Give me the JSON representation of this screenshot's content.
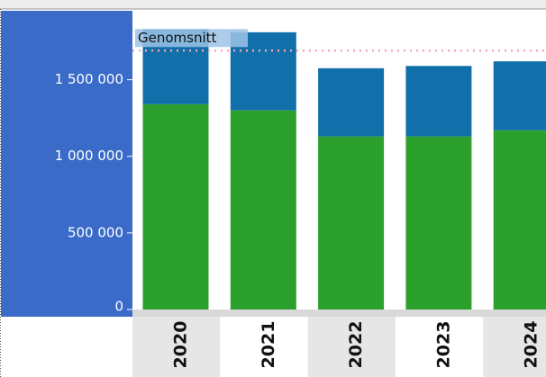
{
  "chart_data": {
    "type": "stacked_bar",
    "categories": [
      "2020",
      "2021",
      "2022",
      "2023",
      "2024"
    ],
    "series": [
      {
        "color": "#2ca02c",
        "values": [
          1340000,
          1300000,
          1130000,
          1130000,
          1170000
        ]
      },
      {
        "color": "#1170aa",
        "values": [
          490000,
          510000,
          445000,
          460000,
          450000
        ]
      }
    ],
    "ylim": [
      0,
      1950000
    ],
    "yticks": [
      0,
      {
        "value": 500000,
        "label": "500 000"
      },
      {
        "value": 1000000,
        "label": "1 000 000"
      },
      {
        "value": 1500000,
        "label": "1 500 000"
      }
    ],
    "reference_line": {
      "label": "Genomsnitt",
      "value": 1690000,
      "color": "#f4a6b4"
    },
    "axis_panel_color": "#3a6bc8"
  }
}
